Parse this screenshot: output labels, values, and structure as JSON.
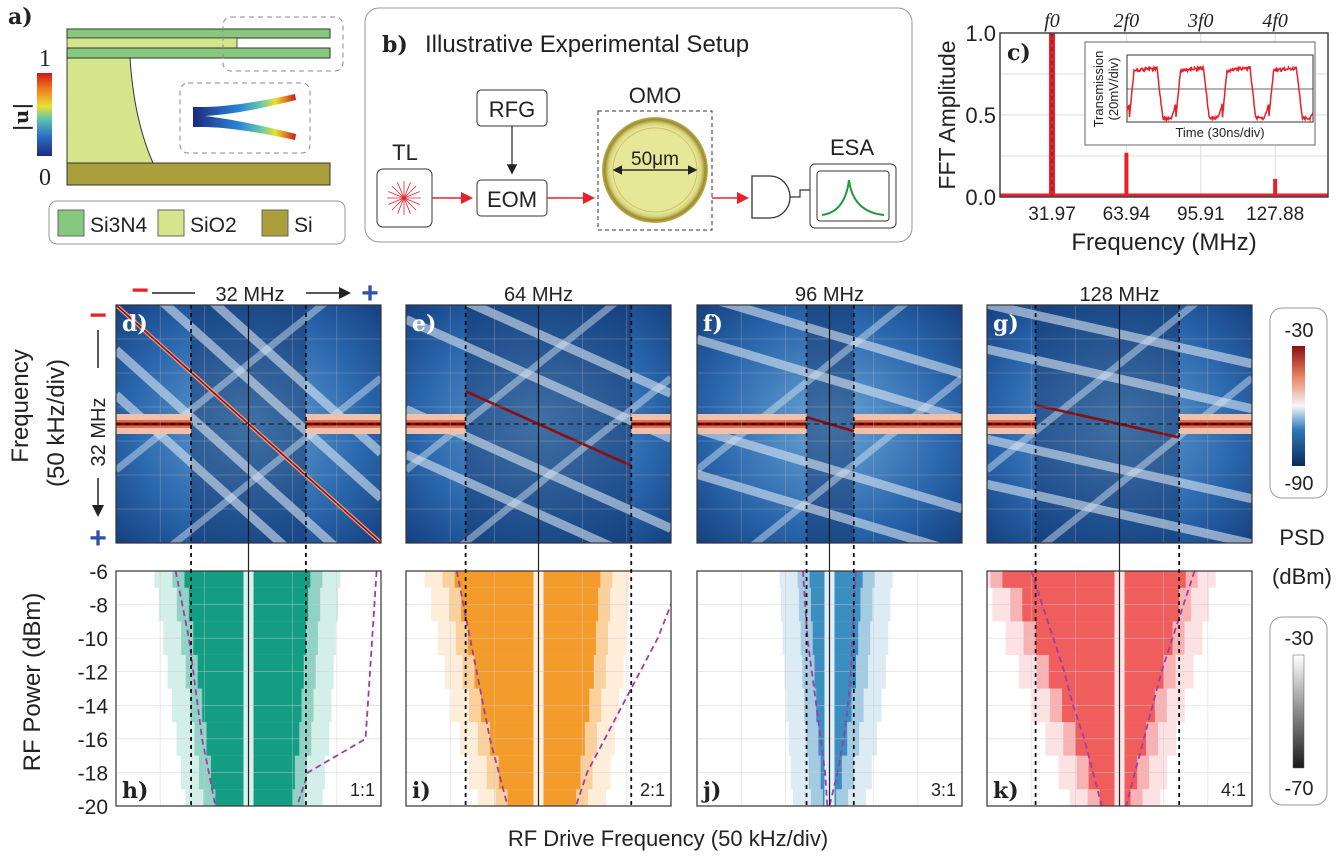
{
  "panel_a": {
    "label": "a)",
    "colorbar_label": "|u|",
    "colorbar_max": "1",
    "colorbar_min": "0",
    "legend": [
      {
        "name": "Si3N4",
        "color": "#86c97e"
      },
      {
        "name": "SiO2",
        "color": "#d6e48c"
      },
      {
        "name": "Si",
        "color": "#aa9f3c"
      }
    ]
  },
  "panel_b": {
    "label": "b)",
    "title": "Illustrative Experimental Setup",
    "tl": "TL",
    "rfg": "RFG",
    "eom": "EOM",
    "omo": "OMO",
    "diameter": "50μm",
    "esa": "ESA",
    "laser_color": "#e8202a",
    "esa_trace_color": "#1f9a3c"
  },
  "chart_data": [
    {
      "id": "c",
      "type": "bar",
      "label": "c)",
      "xlabel": "Frequency (MHz)",
      "ylabel": "FFT Amplitude",
      "x_ticks": [
        "31.97",
        "63.94",
        "95.91",
        "127.88"
      ],
      "top_ticks": [
        "f0",
        "2f0",
        "3f0",
        "4f0"
      ],
      "y_ticks": [
        "0.0",
        "0.5",
        "1.0"
      ],
      "ylim": [
        0,
        1
      ],
      "xlim": [
        9.6,
        150.6
      ],
      "series_color": "#e8202a",
      "x": [
        31.97,
        63.94,
        95.91,
        127.88
      ],
      "values": [
        1.0,
        0.27,
        0.01,
        0.11
      ],
      "grid": true,
      "inset": {
        "xlabel": "Time (30ns/div)",
        "ylabel_1": "Transmission",
        "ylabel_2": "(20mV/div)",
        "periods": 4
      }
    },
    {
      "id": "d-g",
      "type": "heatmap",
      "ylabel_1": "Frequency",
      "ylabel_2": "(50 kHz/div)",
      "top_axis_note": "32 MHz",
      "side_axis_note": "32 MHz",
      "minus": "−",
      "plus": "+",
      "colorbar": {
        "label_1": "PSD",
        "label_2": "(dBm)",
        "max": "-30",
        "min": "-90",
        "colors": [
          "#0d2a5c",
          "#2f78b8",
          "#f4f6f8",
          "#e68060",
          "#8a0e12"
        ]
      },
      "panels": [
        {
          "label": "d)",
          "title": "32 MHz",
          "ratio": 1,
          "lock_range_div": [
            -1.3,
            1.3
          ]
        },
        {
          "label": "e)",
          "title": "64 MHz",
          "ratio": 2,
          "lock_range_div": [
            -1.65,
            2.1
          ]
        },
        {
          "label": "f)",
          "title": "96 MHz",
          "ratio": 3,
          "lock_range_div": [
            -0.52,
            0.55
          ]
        },
        {
          "label": "g)",
          "title": "128 MHz",
          "ratio": 4,
          "lock_range_div": [
            -1.9,
            1.35
          ]
        }
      ]
    },
    {
      "id": "h-k",
      "type": "heatmap",
      "xlabel": "RF Drive Frequency (50 kHz/div)",
      "ylabel": "RF Power (dBm)",
      "y_ticks": [
        "-6",
        "-8",
        "-10",
        "-12",
        "-14",
        "-16",
        "-18",
        "-20"
      ],
      "ylim": [
        -20,
        -6
      ],
      "power_levels": [
        -6,
        -8,
        -10,
        -12,
        -14,
        -16,
        -18,
        -20
      ],
      "colorbar": {
        "max": "-30",
        "min": "-70"
      },
      "panels": [
        {
          "label": "h)",
          "ratio_text": "1:1",
          "color": "#139e84",
          "lock_left_div": [
            -1.45,
            -1.35,
            -1.25,
            -1.15,
            -1.05,
            -0.95,
            -0.85,
            -0.75
          ],
          "lock_right_div": [
            1.4,
            1.35,
            1.3,
            1.25,
            1.2,
            1.15,
            1.05,
            1.0
          ],
          "theory_left_div": [
            -1.65,
            -1.5,
            -1.35,
            -1.25,
            -1.15,
            -1.05,
            -0.9,
            -0.75
          ],
          "theory_right_div": [
            2.9,
            2.85,
            2.8,
            2.75,
            2.7,
            2.65,
            1.35,
            1.1
          ]
        },
        {
          "label": "i)",
          "ratio_text": "2:1",
          "color": "#f39c2c",
          "lock_left_div": [
            -1.9,
            -1.75,
            -1.6,
            -1.45,
            -1.3,
            -1.1,
            -0.9,
            -0.7
          ],
          "lock_right_div": [
            1.4,
            1.35,
            1.3,
            1.25,
            1.15,
            1.05,
            0.95,
            0.85
          ],
          "theory_left_div": [
            -1.85,
            -1.7,
            -1.55,
            -1.4,
            -1.25,
            -1.1,
            -0.9,
            -0.7
          ],
          "theory_right_div": [
            3.2,
            3.0,
            2.7,
            2.3,
            1.9,
            1.5,
            1.1,
            0.85
          ]
        },
        {
          "label": "j)",
          "ratio_text": "3:1",
          "color": "#3b8ec0",
          "lock_left_div": [
            -0.45,
            -0.42,
            -0.38,
            -0.34,
            -0.3,
            -0.25,
            -0.2,
            -0.15
          ],
          "lock_right_div": [
            0.75,
            0.7,
            0.65,
            0.6,
            0.5,
            0.4,
            0.28,
            0.15
          ],
          "theory_left_div": [
            -0.6,
            -0.55,
            -0.5,
            -0.4,
            -0.3,
            -0.2,
            -0.1,
            -0.05
          ],
          "theory_right_div": [
            0.6,
            0.55,
            0.52,
            0.48,
            0.42,
            0.32,
            0.18,
            0.0
          ]
        },
        {
          "label": "k)",
          "ratio_text": "4:1",
          "color": "#ef5d5d",
          "lock_left_div": [
            -2.65,
            -2.2,
            -1.9,
            -1.6,
            -1.3,
            -1.0,
            -0.7,
            -0.45
          ],
          "lock_right_div": [
            1.5,
            1.35,
            1.2,
            1.0,
            0.8,
            0.6,
            0.4,
            0.25
          ],
          "theory_left_div": [
            -2.0,
            -1.75,
            -1.5,
            -1.25,
            -1.05,
            -0.8,
            -0.6,
            -0.4
          ],
          "theory_right_div": [
            1.7,
            1.45,
            1.2,
            0.95,
            0.75,
            0.55,
            0.35,
            0.15
          ]
        }
      ]
    }
  ]
}
